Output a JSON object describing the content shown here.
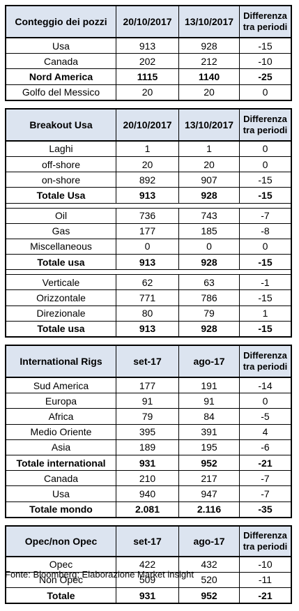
{
  "tables": [
    {
      "header": [
        "Conteggio dei pozzi",
        "20/10/2017",
        "13/10/2017",
        "Differenza tra periodi"
      ],
      "header_height": 44,
      "sections": [
        [
          {
            "label": "Usa",
            "v1": "913",
            "v2": "928",
            "diff": "-15",
            "bold": false
          },
          {
            "label": "Canada",
            "v1": "202",
            "v2": "212",
            "diff": "-10",
            "bold": false
          },
          {
            "label": "Nord America",
            "v1": "1115",
            "v2": "1140",
            "diff": "-25",
            "bold": true
          },
          {
            "label": "Golfo del Messico",
            "v1": "20",
            "v2": "20",
            "diff": "0",
            "bold": false
          }
        ]
      ]
    },
    {
      "header": [
        "Breakout Usa",
        "20/10/2017",
        "13/10/2017",
        "Differenza tra periodi"
      ],
      "header_height": 44,
      "sections": [
        [
          {
            "label": "Laghi",
            "v1": "1",
            "v2": "1",
            "diff": "0",
            "bold": false
          },
          {
            "label": "off-shore",
            "v1": "20",
            "v2": "20",
            "diff": "0",
            "bold": false
          },
          {
            "label": "on-shore",
            "v1": "892",
            "v2": "907",
            "diff": "-15",
            "bold": false
          },
          {
            "label": "Totale Usa",
            "v1": "913",
            "v2": "928",
            "diff": "-15",
            "bold": true
          }
        ],
        [
          {
            "label": "Oil",
            "v1": "736",
            "v2": "743",
            "diff": "-7",
            "bold": false
          },
          {
            "label": "Gas",
            "v1": "177",
            "v2": "185",
            "diff": "-8",
            "bold": false
          },
          {
            "label": "Miscellaneous",
            "v1": "0",
            "v2": "0",
            "diff": "0",
            "bold": false
          },
          {
            "label": "Totale usa",
            "v1": "913",
            "v2": "928",
            "diff": "-15",
            "bold": true
          }
        ],
        [
          {
            "label": "Verticale",
            "v1": "62",
            "v2": "63",
            "diff": "-1",
            "bold": false
          },
          {
            "label": "Orizzontale",
            "v1": "771",
            "v2": "786",
            "diff": "-15",
            "bold": false
          },
          {
            "label": "Direzionale",
            "v1": "80",
            "v2": "79",
            "diff": "1",
            "bold": false
          },
          {
            "label": "Totale usa",
            "v1": "913",
            "v2": "928",
            "diff": "-15",
            "bold": true
          }
        ]
      ]
    },
    {
      "header": [
        "International Rigs",
        "set-17",
        "ago-17",
        "Differenza tra periodi"
      ],
      "header_height": 44,
      "sections": [
        [
          {
            "label": "Sud America",
            "v1": "177",
            "v2": "191",
            "diff": "-14",
            "bold": false
          },
          {
            "label": "Europa",
            "v1": "91",
            "v2": "91",
            "diff": "0",
            "bold": false
          },
          {
            "label": "Africa",
            "v1": "79",
            "v2": "84",
            "diff": "-5",
            "bold": false
          },
          {
            "label": "Medio Oriente",
            "v1": "395",
            "v2": "391",
            "diff": "4",
            "bold": false
          },
          {
            "label": "Asia",
            "v1": "189",
            "v2": "195",
            "diff": "-6",
            "bold": false
          },
          {
            "label": "Totale international",
            "v1": "931",
            "v2": "952",
            "diff": "-21",
            "bold": true
          },
          {
            "label": "Canada",
            "v1": "210",
            "v2": "217",
            "diff": "-7",
            "bold": false
          },
          {
            "label": "Usa",
            "v1": "940",
            "v2": "947",
            "diff": "-7",
            "bold": false
          },
          {
            "label": "Totale mondo",
            "v1": "2.081",
            "v2": "2.116",
            "diff": "-35",
            "bold": true
          }
        ]
      ]
    },
    {
      "header": [
        "Opec/non Opec",
        "set-17",
        "ago-17",
        "Differenza tra periodi"
      ],
      "header_height": 42,
      "sections": [
        [
          {
            "label": "Opec",
            "v1": "422",
            "v2": "432",
            "diff": "-10",
            "bold": false
          },
          {
            "label": "Non Opec",
            "v1": "509",
            "v2": "520",
            "diff": "-11",
            "bold": false
          },
          {
            "label": "Totale",
            "v1": "931",
            "v2": "952",
            "diff": "-21",
            "bold": true
          }
        ]
      ]
    }
  ],
  "footer": "Fonte: Bloomberg; Elaborazione Market insight"
}
